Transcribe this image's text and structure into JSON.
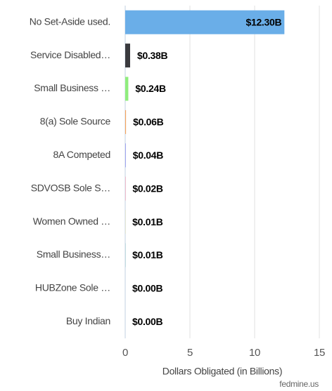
{
  "chart_data": {
    "type": "bar",
    "orientation": "horizontal",
    "categories": [
      "No Set-Aside used.",
      "Service Disabled…",
      "Small Business …",
      "8(a) Sole Source",
      "8A Competed",
      "SDVOSB Sole S…",
      "Women Owned …",
      "Small Business…",
      "HUBZone Sole …",
      "Buy Indian"
    ],
    "values": [
      12.3,
      0.38,
      0.24,
      0.06,
      0.04,
      0.02,
      0.01,
      0.01,
      0.0,
      0.0
    ],
    "value_labels": [
      "$12.30B",
      "$0.38B",
      "$0.24B",
      "$0.06B",
      "$0.04B",
      "$0.02B",
      "$0.01B",
      "$0.01B",
      "$0.00B",
      "$0.00B"
    ],
    "colors": [
      "#6aaee8",
      "#3a3a3e",
      "#90ed7d",
      "#f7a35c",
      "#8085e9",
      "#f15c80",
      "#e4d354",
      "#2b908f",
      "#f45b5b",
      "#91e8e1"
    ],
    "xlim": [
      0,
      15
    ],
    "xticks": [
      0,
      5,
      10,
      15
    ],
    "grid": true,
    "xlabel": "Dollars Obligated (in Billions)",
    "credit": "fedmine.us"
  }
}
